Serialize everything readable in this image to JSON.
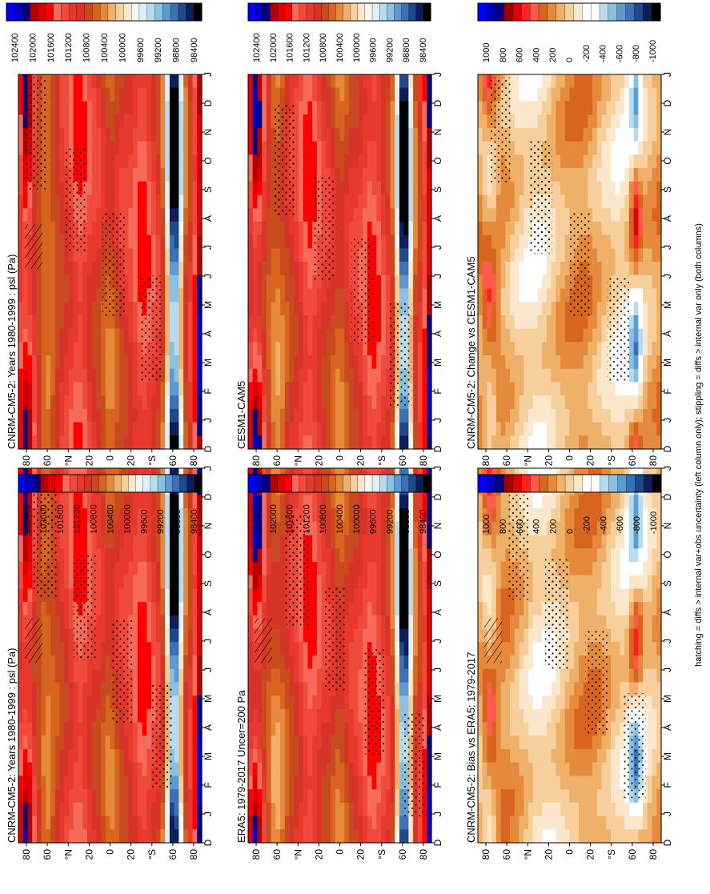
{
  "figure": {
    "footnote": "hatching = diffs > internal var+obs uncertainty (left column only); stippling = diffs > internal var only (both columns)"
  },
  "colors": {
    "abs": [
      "#000000",
      "#0e1e5b",
      "#1e4a8c",
      "#3a72b5",
      "#5b9bd0",
      "#8cc0e0",
      "#b8dcee",
      "#dff0f6",
      "#f8f8f0",
      "#fbe8cc",
      "#f6cf9c",
      "#efb06a",
      "#e58a3b",
      "#d8651f",
      "#c84a1f",
      "#d73428",
      "#e8392f",
      "#f04a3c",
      "#f56a58",
      "#ff0000",
      "#e00000",
      "#b40000",
      "#000080",
      "#0000c0",
      "#0000ff"
    ],
    "diff": [
      "#000000",
      "#0e1e5b",
      "#1e4a8c",
      "#3a72b5",
      "#5b9bd0",
      "#8cc0e0",
      "#b8dcee",
      "#ffffff",
      "#ffffff",
      "#fbe8cc",
      "#f6cf9c",
      "#efb06a",
      "#e58a3b",
      "#d8651f",
      "#ff5a4a",
      "#ff2020",
      "#e00000",
      "#9e0000",
      "#000080",
      "#0000c0",
      "#0000ff"
    ]
  },
  "colorbars": {
    "absolute": [
      "102400",
      "102000",
      "101600",
      "101200",
      "100800",
      "100400",
      "100000",
      "99600",
      "99200",
      "98800",
      "98400"
    ],
    "difference": [
      "1000",
      "800",
      "600",
      "400",
      "200",
      "0",
      "-200",
      "-400",
      "-600",
      "-800",
      "-1000"
    ]
  },
  "axes": {
    "months": [
      "D",
      "J",
      "F",
      "M",
      "A",
      "M",
      "J",
      "J",
      "A",
      "S",
      "O",
      "N",
      "D",
      "J"
    ],
    "lats": [
      "80",
      "60",
      "40",
      "20",
      "0",
      "20",
      "40",
      "60",
      "80"
    ],
    "lat_labels": [
      "80",
      "60",
      "°N",
      "20",
      "0",
      "20",
      "°S",
      "60",
      "80"
    ]
  },
  "chart_data": [
    {
      "type": "heatmap",
      "title": "CNRM-CM5-2: Years 1980-1999 : psl (Pa)",
      "xlabel": "",
      "ylabel": "",
      "hatched": true,
      "stippled": true,
      "units": "Pa"
    },
    {
      "type": "heatmap",
      "title": "CNRM-CM5-2: Years 1980-1999 : psl (Pa)",
      "xlabel": "",
      "ylabel": "",
      "hatched": false,
      "stippled": true,
      "units": "Pa"
    },
    {
      "type": "heatmap",
      "title": "ERA5: 1979-2017 Uncer=200 Pa",
      "xlabel": "",
      "ylabel": "",
      "hatched": true,
      "stippled": true,
      "units": "Pa"
    },
    {
      "type": "heatmap",
      "title": "CESM1-CAM5",
      "xlabel": "",
      "ylabel": "",
      "hatched": false,
      "stippled": true,
      "units": "Pa"
    },
    {
      "type": "heatmap",
      "title": "CNRM-CM5-2: Bias vs ERA5: 1979-2017",
      "xlabel": "",
      "ylabel": "",
      "hatched": true,
      "stippled": true,
      "units": "Pa"
    },
    {
      "type": "heatmap",
      "title": "CNRM-CM5-2: Change vs CESM1-CAM5",
      "xlabel": "",
      "ylabel": "",
      "hatched": false,
      "stippled": true,
      "units": "Pa"
    }
  ]
}
